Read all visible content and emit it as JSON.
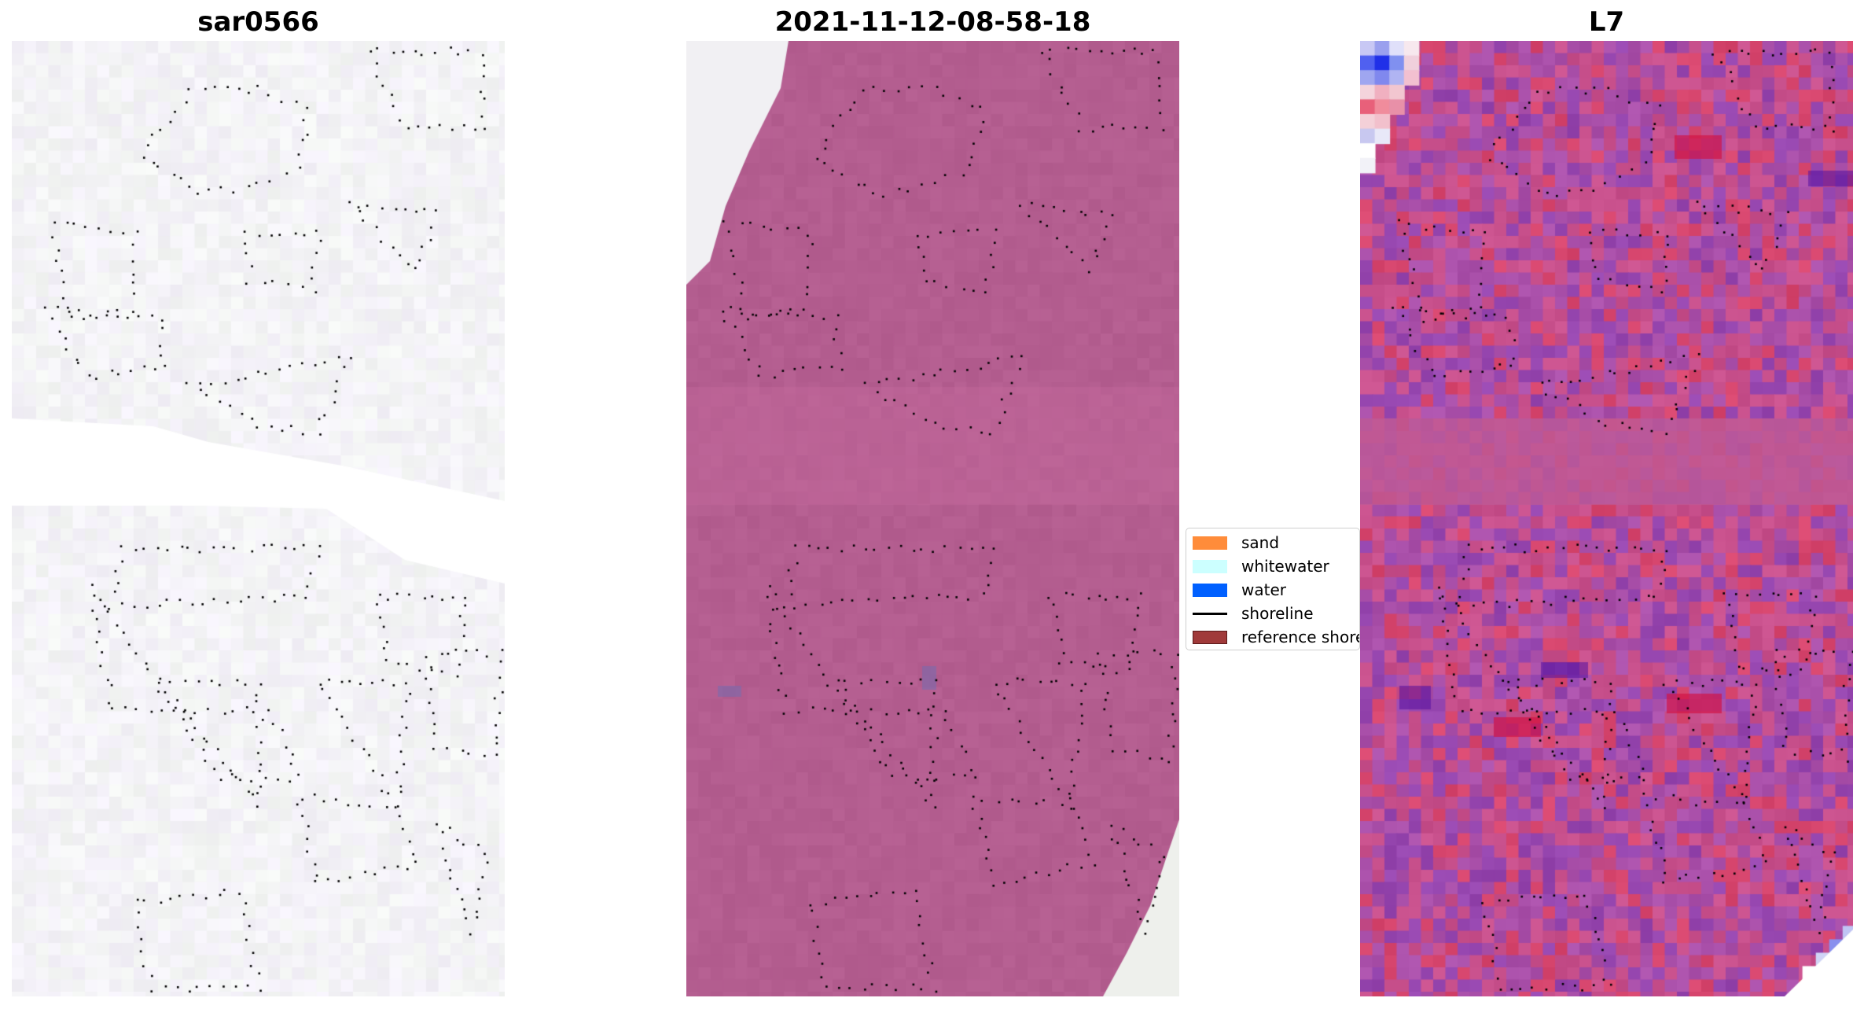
{
  "panels": [
    {
      "title": "sar0566"
    },
    {
      "title": "2021-11-12-08-58-18"
    },
    {
      "title": "L7"
    }
  ],
  "legend": {
    "items": [
      {
        "label": "sand",
        "type": "patch",
        "color": "#ff8c3a"
      },
      {
        "label": "whitewater",
        "type": "patch",
        "color": "#ccffff"
      },
      {
        "label": "water",
        "type": "patch",
        "color": "#0060ff"
      },
      {
        "label": "shoreline",
        "type": "line",
        "color": "#000000"
      },
      {
        "label": "reference shoreline",
        "type": "patch",
        "color": "#a03a3a"
      }
    ]
  },
  "colors": {
    "classified_overlay": "#b35e8e",
    "rgb_background": "#f4f2f5"
  }
}
